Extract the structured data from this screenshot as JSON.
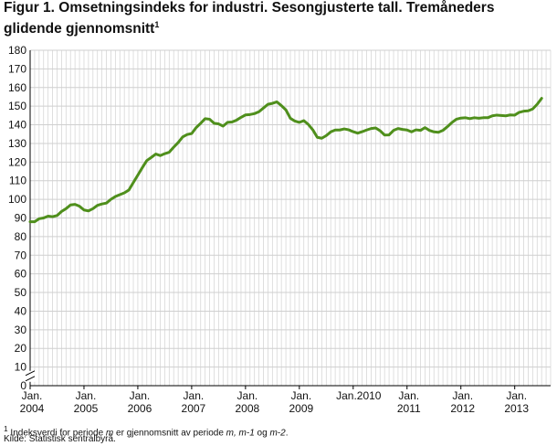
{
  "header": {
    "title": "Figur 1. Omsetningsindeks for industri. Sesongjusterte tall. Tremåneders glidende gjennomsnitt",
    "title_sup": "1"
  },
  "footer": {
    "footnote_sup": "1",
    "footnote_pre": " Indeksverdi for periode ",
    "footnote_m1": "m",
    "footnote_mid": " er gjennomsnitt av periode ",
    "footnote_m2": "m, m-1",
    "footnote_og": " og ",
    "footnote_m3": "m-2",
    "footnote_end": ".",
    "source": "Kilde: Statistisk sentralbyrå."
  },
  "chart_data": {
    "type": "line",
    "title": "Figur 1. Omsetningsindeks for industri. Sesongjusterte tall. Tremåneders glidende gjennomsnitt",
    "ylim": [
      0,
      180
    ],
    "y_ticks": [
      0,
      10,
      20,
      30,
      40,
      50,
      60,
      70,
      80,
      90,
      100,
      110,
      120,
      130,
      140,
      150,
      160,
      170,
      180
    ],
    "y_axis_break": "between 0 and 80",
    "grid": "vertical monthly lines and horizontal lines at each y tick",
    "x_start": "2004-01",
    "x_end": "2013-07",
    "x_tick_labels": [
      {
        "line1": "Jan.",
        "line2": "2004"
      },
      {
        "line1": "Jan.",
        "line2": "2005"
      },
      {
        "line1": "Jan.",
        "line2": "2006"
      },
      {
        "line1": "Jan.",
        "line2": "2007"
      },
      {
        "line1": "Jan.",
        "line2": "2008"
      },
      {
        "line1": "Jan.",
        "line2": "2009"
      },
      {
        "line1": "Jan.2010",
        "line2": ""
      },
      {
        "line1": "Jan.",
        "line2": "2011"
      },
      {
        "line1": "Jan.",
        "line2": "2012"
      },
      {
        "line1": "Jan.",
        "line2": "2013"
      }
    ],
    "color": "#4f8f1c",
    "values": [
      88.0,
      88.0,
      89.6,
      90.0,
      91.0,
      90.7,
      91.3,
      93.5,
      95.0,
      97.0,
      97.3,
      96.3,
      94.3,
      93.8,
      95.0,
      96.8,
      97.5,
      98.0,
      100.0,
      101.5,
      102.5,
      103.5,
      105.0,
      109.0,
      113.0,
      117.0,
      120.8,
      122.5,
      124.3,
      123.5,
      124.5,
      125.3,
      128.0,
      130.5,
      133.5,
      134.8,
      135.3,
      138.5,
      140.8,
      143.3,
      143.0,
      140.8,
      140.5,
      139.3,
      141.3,
      141.5,
      142.5,
      144.0,
      145.3,
      145.5,
      146.0,
      147.0,
      149.0,
      151.0,
      151.5,
      152.3,
      150.3,
      148.0,
      143.5,
      142.0,
      141.3,
      142.2,
      140.2,
      137.3,
      133.3,
      132.8,
      134.2,
      136.2,
      137.2,
      137.2,
      137.8,
      137.3,
      136.3,
      135.5,
      136.3,
      137.2,
      138.0,
      138.3,
      136.8,
      134.5,
      134.6,
      137.0,
      138.0,
      137.5,
      137.2,
      136.2,
      137.3,
      137.0,
      138.5,
      137.0,
      136.2,
      136.0,
      137.0,
      139.0,
      141.2,
      143.0,
      143.6,
      143.8,
      143.3,
      143.8,
      143.5,
      143.8,
      143.8,
      144.8,
      145.2,
      145.0,
      144.8,
      145.3,
      145.2,
      146.7,
      147.3,
      147.5,
      148.5,
      151.0,
      154.2
    ]
  }
}
